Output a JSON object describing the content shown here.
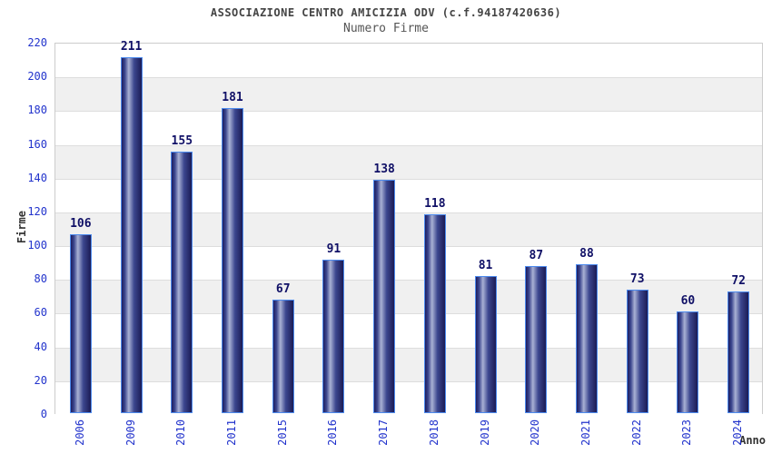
{
  "header": {
    "title": "ASSOCIAZIONE CENTRO AMICIZIA ODV (c.f.94187420636)",
    "subtitle": "Numero Firme"
  },
  "chart_data": {
    "type": "bar",
    "title": "ASSOCIAZIONE CENTRO AMICIZIA ODV (c.f.94187420636)",
    "subtitle": "Numero Firme",
    "xlabel": "Anno",
    "ylabel": "Firme",
    "categories": [
      "2006",
      "2009",
      "2010",
      "2011",
      "2015",
      "2016",
      "2017",
      "2018",
      "2019",
      "2020",
      "2021",
      "2022",
      "2023",
      "2024"
    ],
    "values": [
      106,
      211,
      155,
      181,
      67,
      91,
      138,
      118,
      81,
      87,
      88,
      73,
      60,
      72
    ],
    "ylim": [
      0,
      220
    ],
    "ytick_step": 20,
    "grid": "horizontal",
    "legend": "none",
    "colors": {
      "bar_edge_dark": "#1d1d60",
      "bar_mid_dark": "#3c478f",
      "bar_highlight": "#a9b1d4",
      "bar_right_dark": "#1b1b55",
      "bar_border": "#4d8bee",
      "tick_label": "#2233cc",
      "value_label": "#101066",
      "band_gray": "#f0f0f0",
      "gridline": "#dddddd",
      "plot_border": "#cccccc",
      "title_color": "#444444",
      "axis_title_color": "#333333"
    }
  }
}
